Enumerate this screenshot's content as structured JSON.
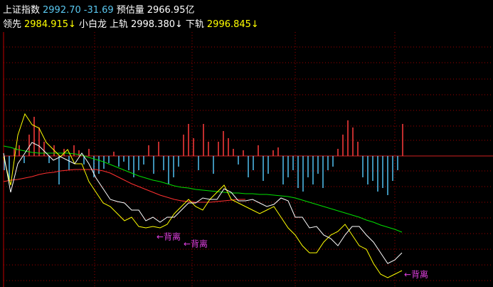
{
  "header": {
    "line1": [
      {
        "text": "上证指数",
        "color": "#ffffff"
      },
      {
        "text": "2992.70",
        "color": "#5ac8f0"
      },
      {
        "text": "-31.69",
        "color": "#5ac8f0"
      },
      {
        "text": "预估量",
        "color": "#ffffff"
      },
      {
        "text": "2966.95亿",
        "color": "#ffffff"
      }
    ],
    "line2": [
      {
        "text": "领先",
        "color": "#ffffff"
      },
      {
        "text": "2984.915↓",
        "color": "#ffff00"
      },
      {
        "text": "小白龙",
        "color": "#ffffff"
      },
      {
        "text": "上轨",
        "color": "#ffffff"
      },
      {
        "text": "2998.380↓",
        "color": "#ffffff"
      },
      {
        "text": "下轨",
        "color": "#ffffff"
      },
      {
        "text": "2996.845↓",
        "color": "#ffff00"
      }
    ]
  },
  "chart_data": [
    {
      "type": "line",
      "ylim": [
        0,
        360
      ],
      "annotations": [
        "←背离",
        "←背离",
        "←背离"
      ],
      "annotation_color": "#e040e0",
      "series": [
        {
          "name": "red",
          "color": "#ff3030",
          "values": [
            148,
            150,
            151,
            153,
            155,
            158,
            160,
            161,
            163,
            164,
            165,
            165,
            165,
            165,
            163,
            160,
            155,
            150,
            145,
            141,
            137,
            133,
            129,
            126,
            123,
            121,
            120,
            119,
            119,
            119,
            120,
            121,
            122,
            123,
            123,
            null,
            null,
            null,
            null,
            null,
            null,
            null,
            null,
            null,
            null,
            null,
            null,
            null,
            null,
            null,
            null,
            null,
            null,
            null,
            null,
            null,
            null
          ]
        },
        {
          "name": "green",
          "color": "#00e000",
          "values": [
            198,
            196,
            193,
            191,
            189,
            188,
            188,
            188,
            188,
            188,
            187,
            185,
            182,
            179,
            176,
            172,
            168,
            164,
            160,
            156,
            153,
            150,
            148,
            145,
            142,
            140,
            139,
            137,
            136,
            135,
            134,
            133,
            132,
            132,
            131,
            131,
            130,
            130,
            129,
            128,
            127,
            125,
            122,
            119,
            116,
            113,
            110,
            107,
            104,
            101,
            98,
            94,
            91,
            87,
            84,
            81,
            77
          ]
        },
        {
          "name": "yellow",
          "color": "#ffff00",
          "values": [
            183,
            143,
            213,
            243,
            228,
            223,
            203,
            193,
            183,
            193,
            173,
            173,
            148,
            133,
            118,
            113,
            103,
            93,
            98,
            85,
            83,
            85,
            83,
            88,
            103,
            113,
            123,
            113,
            108,
            123,
            133,
            143,
            123,
            118,
            113,
            108,
            103,
            108,
            113,
            98,
            83,
            73,
            58,
            48,
            48,
            63,
            73,
            78,
            88,
            73,
            58,
            53,
            33,
            18,
            13,
            18,
            23
          ]
        },
        {
          "name": "white",
          "color": "#ffffff",
          "values": [
            188,
            133,
            173,
            188,
            203,
            198,
            188,
            178,
            183,
            178,
            173,
            188,
            173,
            153,
            138,
            123,
            120,
            118,
            108,
            108,
            93,
            98,
            91,
            98,
            98,
            108,
            118,
            118,
            125,
            123,
            123,
            138,
            133,
            121,
            121,
            123,
            118,
            113,
            116,
            125,
            121,
            98,
            98,
            83,
            85,
            73,
            68,
            58,
            73,
            85,
            85,
            73,
            63,
            48,
            33,
            38,
            48
          ]
        }
      ]
    },
    {
      "type": "bar",
      "ylim": [
        -184,
        176
      ],
      "up_color": "#ff3c3c",
      "down_color": "#50c0f0",
      "values": [
        -20,
        -35,
        10,
        15,
        -10,
        30,
        55,
        40,
        20,
        -10,
        15,
        -40,
        10,
        -20,
        15,
        8,
        -12,
        10,
        -30,
        -25,
        -18,
        -10,
        6,
        -15,
        -8,
        -20,
        -30,
        -20,
        -12,
        15,
        -25,
        20,
        -20,
        -40,
        -30,
        -15,
        30,
        45,
        25,
        -20,
        45,
        20,
        -25,
        20,
        35,
        25,
        10,
        -12,
        8,
        -30,
        -20,
        15,
        -35,
        -25,
        8,
        12,
        -40,
        -30,
        -20,
        -45,
        -50,
        -30,
        -40,
        -25,
        -45,
        -20,
        -15,
        10,
        30,
        50,
        40,
        20,
        -30,
        -40,
        -35,
        -50,
        -45,
        -55,
        -35,
        -20,
        45
      ]
    }
  ]
}
